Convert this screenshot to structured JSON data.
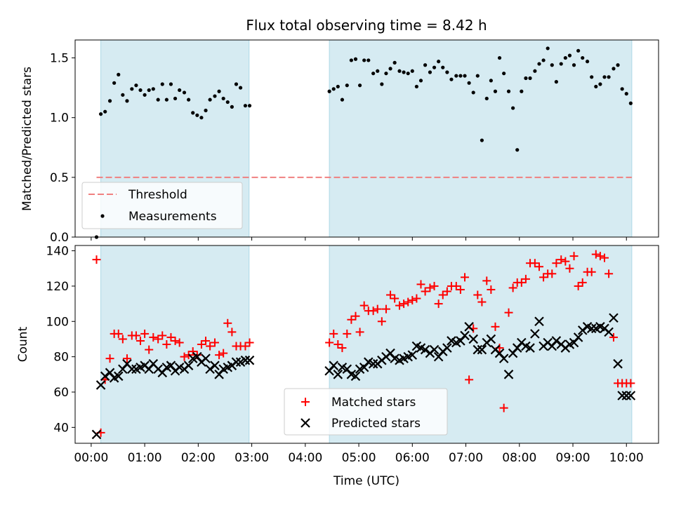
{
  "chart_data": [
    {
      "type": "scatter",
      "title": "Flux total observing time = 8.42 h",
      "xlabel": "",
      "ylabel": "Matched/Predicted stars",
      "ylim": [
        0,
        1.65
      ],
      "yticks": [
        0.0,
        0.5,
        1.0,
        1.5
      ],
      "ytick_labels": [
        "0.0",
        "0.5",
        "1.0",
        "1.5"
      ],
      "xlim_hours": [
        -0.3,
        10.6
      ],
      "shaded_intervals_hours": [
        [
          0.18,
          2.95
        ],
        [
          4.45,
          10.1
        ]
      ],
      "threshold": {
        "name": "Threshold",
        "value": 0.5,
        "x_range_hours": [
          0.1,
          10.1
        ],
        "color": "#f08080"
      },
      "legend": {
        "position": "lower-left",
        "entries": [
          "Threshold",
          "Measurements"
        ]
      },
      "series": [
        {
          "name": "Measurements",
          "marker": "dot",
          "color": "#000000",
          "x": [
            0.1,
            0.18,
            0.26,
            0.35,
            0.43,
            0.51,
            0.59,
            0.67,
            0.76,
            0.84,
            0.92,
            1.0,
            1.08,
            1.16,
            1.25,
            1.33,
            1.41,
            1.49,
            1.57,
            1.65,
            1.74,
            1.82,
            1.9,
            1.98,
            2.06,
            2.14,
            2.22,
            2.31,
            2.39,
            2.47,
            2.55,
            2.63,
            2.71,
            2.79,
            2.88,
            2.96,
            4.45,
            4.53,
            4.61,
            4.69,
            4.78,
            4.86,
            4.94,
            5.02,
            5.1,
            5.18,
            5.27,
            5.35,
            5.43,
            5.51,
            5.59,
            5.67,
            5.76,
            5.84,
            5.92,
            6.0,
            6.08,
            6.16,
            6.24,
            6.33,
            6.41,
            6.49,
            6.57,
            6.65,
            6.73,
            6.82,
            6.9,
            6.98,
            7.06,
            7.14,
            7.22,
            7.3,
            7.39,
            7.47,
            7.55,
            7.63,
            7.71,
            7.8,
            7.88,
            7.96,
            8.04,
            8.12,
            8.2,
            8.29,
            8.37,
            8.45,
            8.53,
            8.61,
            8.69,
            8.78,
            8.86,
            8.94,
            9.02,
            9.1,
            9.18,
            9.27,
            9.35,
            9.43,
            9.51,
            9.59,
            9.67,
            9.76,
            9.84,
            9.92,
            10.0,
            10.08
          ],
          "y": [
            0.0,
            1.03,
            1.05,
            1.14,
            1.29,
            1.36,
            1.19,
            1.14,
            1.24,
            1.27,
            1.23,
            1.19,
            1.23,
            1.24,
            1.15,
            1.28,
            1.15,
            1.28,
            1.16,
            1.23,
            1.21,
            1.15,
            1.04,
            1.02,
            1.0,
            1.06,
            1.15,
            1.18,
            1.22,
            1.16,
            1.13,
            1.09,
            1.28,
            1.25,
            1.1,
            1.1,
            1.22,
            1.24,
            1.26,
            1.15,
            1.27,
            1.48,
            1.49,
            1.27,
            1.48,
            1.48,
            1.37,
            1.39,
            1.28,
            1.37,
            1.41,
            1.46,
            1.39,
            1.38,
            1.37,
            1.39,
            1.26,
            1.31,
            1.44,
            1.38,
            1.42,
            1.47,
            1.42,
            1.38,
            1.32,
            1.35,
            1.35,
            1.35,
            1.29,
            1.21,
            1.35,
            0.81,
            1.16,
            1.31,
            1.22,
            1.5,
            1.37,
            1.22,
            1.08,
            0.73,
            1.22,
            1.33,
            1.33,
            1.39,
            1.45,
            1.48,
            1.58,
            1.44,
            1.3,
            1.45,
            1.5,
            1.52,
            1.44,
            1.56,
            1.5,
            1.47,
            1.34,
            1.26,
            1.28,
            1.34,
            1.34,
            1.41,
            1.44,
            1.24,
            1.2,
            1.12
          ]
        }
      ]
    },
    {
      "type": "scatter",
      "title": "",
      "xlabel": "Time (UTC)",
      "ylabel": "Count",
      "ylim": [
        31,
        143
      ],
      "yticks": [
        40,
        60,
        80,
        100,
        120,
        140
      ],
      "ytick_labels": [
        "40",
        "60",
        "80",
        "100",
        "120",
        "140"
      ],
      "xlim_hours": [
        -0.3,
        10.6
      ],
      "xticks_hours": [
        0,
        1,
        2,
        3,
        4,
        5,
        6,
        7,
        8,
        9,
        10
      ],
      "xtick_labels": [
        "00:00",
        "01:00",
        "02:00",
        "03:00",
        "04:00",
        "05:00",
        "06:00",
        "07:00",
        "08:00",
        "09:00",
        "10:00"
      ],
      "shaded_intervals_hours": [
        [
          0.18,
          2.95
        ],
        [
          4.45,
          10.1
        ]
      ],
      "legend": {
        "position": "lower-center",
        "entries": [
          "Matched stars",
          "Predicted stars"
        ]
      },
      "series": [
        {
          "name": "Matched stars",
          "marker": "plus",
          "color": "#ff0000",
          "x": [
            0.1,
            0.18,
            0.26,
            0.35,
            0.43,
            0.51,
            0.59,
            0.67,
            0.76,
            0.84,
            0.92,
            1.0,
            1.08,
            1.16,
            1.25,
            1.33,
            1.41,
            1.49,
            1.57,
            1.65,
            1.74,
            1.82,
            1.9,
            1.98,
            2.06,
            2.14,
            2.22,
            2.31,
            2.39,
            2.47,
            2.55,
            2.63,
            2.71,
            2.79,
            2.88,
            2.96,
            4.45,
            4.53,
            4.61,
            4.69,
            4.78,
            4.86,
            4.94,
            5.02,
            5.1,
            5.18,
            5.27,
            5.35,
            5.43,
            5.51,
            5.59,
            5.67,
            5.76,
            5.84,
            5.92,
            6.0,
            6.08,
            6.16,
            6.24,
            6.33,
            6.41,
            6.49,
            6.57,
            6.65,
            6.73,
            6.82,
            6.9,
            6.98,
            7.06,
            7.14,
            7.22,
            7.3,
            7.39,
            7.47,
            7.55,
            7.63,
            7.71,
            7.8,
            7.88,
            7.96,
            8.04,
            8.12,
            8.2,
            8.29,
            8.37,
            8.45,
            8.53,
            8.61,
            8.69,
            8.78,
            8.86,
            8.94,
            9.02,
            9.1,
            9.18,
            9.27,
            9.35,
            9.43,
            9.51,
            9.59,
            9.67,
            9.76,
            9.84,
            9.92,
            10.0,
            10.08
          ],
          "y": [
            135,
            37,
            67,
            79,
            93,
            93,
            90,
            79,
            92,
            92,
            89,
            93,
            84,
            91,
            90,
            92,
            87,
            91,
            89,
            88,
            80,
            81,
            83,
            81,
            87,
            89,
            86,
            88,
            81,
            82,
            99,
            94,
            86,
            86,
            86,
            88,
            88,
            93,
            87,
            85,
            93,
            101,
            103,
            94,
            109,
            106,
            106,
            107,
            100,
            107,
            115,
            113,
            109,
            110,
            111,
            112,
            113,
            121,
            117,
            119,
            120,
            110,
            115,
            117,
            120,
            120,
            118,
            125,
            67,
            96,
            115,
            111,
            123,
            118,
            97,
            85,
            51,
            105,
            119,
            122,
            122,
            124,
            133,
            133,
            131,
            125,
            127,
            127,
            133,
            135,
            134,
            130,
            137,
            120,
            122,
            128,
            128,
            138,
            137,
            136,
            127,
            91,
            65,
            65,
            65,
            65
          ],
          "note": ""
        },
        {
          "name": "Predicted stars",
          "marker": "x",
          "color": "#000000",
          "x": [
            0.1,
            0.18,
            0.26,
            0.35,
            0.43,
            0.51,
            0.59,
            0.67,
            0.76,
            0.84,
            0.92,
            1.0,
            1.08,
            1.16,
            1.25,
            1.33,
            1.41,
            1.49,
            1.57,
            1.65,
            1.74,
            1.82,
            1.9,
            1.98,
            2.06,
            2.14,
            2.22,
            2.31,
            2.39,
            2.47,
            2.55,
            2.63,
            2.71,
            2.79,
            2.88,
            2.96,
            4.45,
            4.53,
            4.61,
            4.69,
            4.78,
            4.86,
            4.94,
            5.02,
            5.1,
            5.18,
            5.27,
            5.35,
            5.43,
            5.51,
            5.59,
            5.67,
            5.76,
            5.84,
            5.92,
            6.0,
            6.08,
            6.16,
            6.24,
            6.33,
            6.41,
            6.49,
            6.57,
            6.65,
            6.73,
            6.82,
            6.9,
            6.98,
            7.06,
            7.14,
            7.22,
            7.3,
            7.39,
            7.47,
            7.55,
            7.63,
            7.71,
            7.8,
            7.88,
            7.96,
            8.04,
            8.12,
            8.2,
            8.29,
            8.37,
            8.45,
            8.53,
            8.61,
            8.69,
            8.78,
            8.86,
            8.94,
            9.02,
            9.1,
            9.18,
            9.27,
            9.35,
            9.43,
            9.51,
            9.59,
            9.67,
            9.76,
            9.84,
            9.92,
            10.0,
            10.08
          ],
          "y": [
            36,
            64,
            69,
            71,
            68,
            69,
            73,
            76,
            73,
            73,
            74,
            75,
            73,
            76,
            73,
            71,
            74,
            75,
            72,
            74,
            73,
            75,
            79,
            80,
            77,
            79,
            73,
            75,
            70,
            73,
            74,
            75,
            77,
            77,
            78,
            78,
            72,
            75,
            70,
            74,
            73,
            70,
            69,
            73,
            74,
            77,
            76,
            76,
            78,
            80,
            82,
            79,
            78,
            79,
            80,
            81,
            86,
            85,
            84,
            82,
            84,
            80,
            83,
            85,
            89,
            88,
            89,
            92,
            97,
            90,
            84,
            84,
            88,
            90,
            84,
            82,
            79,
            70,
            82,
            85,
            88,
            86,
            85,
            93,
            100,
            86,
            88,
            86,
            89,
            87,
            85,
            87,
            88,
            91,
            95,
            97,
            96,
            96,
            97,
            96,
            94,
            102,
            76,
            58,
            58,
            58
          ]
        }
      ]
    }
  ]
}
